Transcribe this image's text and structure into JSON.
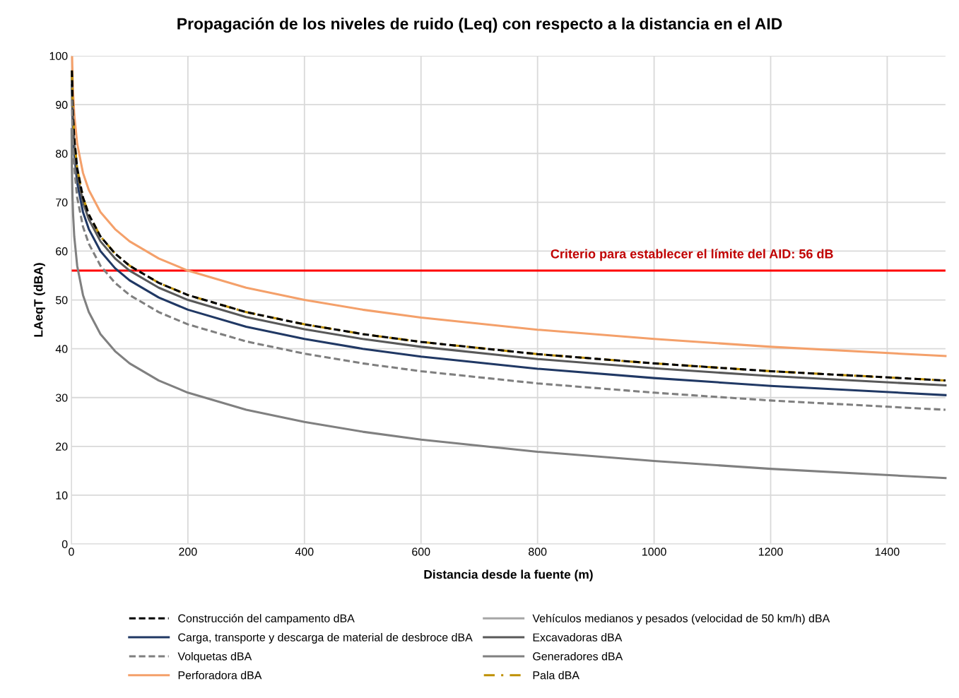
{
  "chart_data": {
    "type": "line",
    "title": "Propagación de los niveles de ruido (Leq) con respecto a la distancia en el AID",
    "xlabel": "Distancia desde la fuente (m)",
    "ylabel": "LAeqT (dBA)",
    "x": [
      1,
      2,
      3,
      5,
      10,
      20,
      30,
      50,
      75,
      100,
      150,
      200,
      300,
      400,
      500,
      600,
      800,
      1000,
      1200,
      1500
    ],
    "series": [
      {
        "name": "Construcción del campamento dBA",
        "color": "#000000",
        "line_style": "dashed",
        "values": [
          97,
          91,
          87.5,
          83,
          77,
          71,
          67.5,
          63,
          59.5,
          57,
          53.5,
          51,
          47.5,
          45,
          43,
          41.4,
          38.9,
          37,
          35.4,
          33.5
        ]
      },
      {
        "name": "Carga, transporte y descarga de material de desbroce dBA",
        "color": "#203864",
        "line_style": "solid",
        "values": [
          94,
          88,
          84.5,
          80,
          74,
          68,
          64.5,
          60,
          56.5,
          54,
          50.5,
          48,
          44.5,
          42,
          40,
          38.4,
          35.9,
          34,
          32.4,
          30.5
        ]
      },
      {
        "name": "Volquetas dBA",
        "color": "#7f7f7f",
        "line_style": "dashed",
        "values": [
          91,
          85,
          81.5,
          77,
          71,
          65,
          61.5,
          57,
          53.5,
          51,
          47.5,
          45,
          41.5,
          39,
          37,
          35.4,
          32.9,
          31,
          29.4,
          27.5
        ]
      },
      {
        "name": "Perforadora dBA",
        "color": "#f4a06a",
        "line_style": "solid",
        "x": [
          1.3,
          2,
          3,
          5,
          10,
          20,
          30,
          50,
          75,
          100,
          150,
          200,
          300,
          400,
          500,
          600,
          800,
          1000,
          1200,
          1500
        ],
        "values": [
          99.7,
          96,
          92.5,
          88,
          82,
          76,
          72.5,
          68,
          64.5,
          62,
          58.5,
          56,
          52.5,
          50,
          48,
          46.4,
          43.9,
          42,
          40.4,
          38.5
        ]
      },
      {
        "name": "Vehículos medianos y pesados (velocidad de 50 km/h) dBA",
        "color": "#a6a6a6",
        "line_style": "solid",
        "values": [
          null,
          null,
          null,
          null,
          null,
          null,
          null,
          null,
          null,
          null,
          null,
          null,
          null,
          null,
          null,
          null,
          null,
          null,
          null,
          null
        ]
      },
      {
        "name": "Excavadoras dBA",
        "color": "#595959",
        "line_style": "solid",
        "values": [
          96,
          90,
          86.5,
          82,
          76,
          70,
          66.5,
          62,
          58.5,
          56,
          52.5,
          50,
          46.5,
          44,
          42,
          40.4,
          37.9,
          36,
          34.4,
          32.5
        ]
      },
      {
        "name": "Generadores dBA",
        "color": "#808080",
        "line_style": "solid",
        "x": [
          0.4,
          1,
          2,
          3,
          5,
          10,
          20,
          30,
          50,
          75,
          100,
          150,
          200,
          300,
          400,
          500,
          600,
          800,
          1000,
          1200,
          1500
        ],
        "values": [
          85,
          77,
          71,
          67.5,
          63,
          57,
          51,
          47.5,
          43,
          39.5,
          37,
          33.5,
          31,
          27.5,
          25,
          23,
          21.4,
          18.9,
          17,
          15.4,
          13.5
        ]
      },
      {
        "name": "Pala dBA",
        "color": "#bf9000",
        "line_style": "dashdot",
        "values": [
          97,
          91,
          87.5,
          83,
          77,
          71,
          67.5,
          63,
          59.5,
          57,
          53.5,
          51,
          47.5,
          45,
          43,
          41.4,
          38.9,
          37,
          35.4,
          33.5
        ]
      }
    ],
    "ref_lines": [
      {
        "axis": "y",
        "value": 56,
        "label": "Criterio para establecer el límite del AID: 56 dB",
        "color": "#ff0000",
        "line_style": "solid"
      }
    ],
    "xlim": [
      0,
      1500
    ],
    "xticks": [
      0,
      200,
      400,
      600,
      800,
      1000,
      1200,
      1400
    ],
    "ylim": [
      0,
      100
    ],
    "yticks": [
      0,
      10,
      20,
      30,
      40,
      50,
      60,
      70,
      80,
      90,
      100
    ],
    "grid": true,
    "legend": "bottom"
  }
}
